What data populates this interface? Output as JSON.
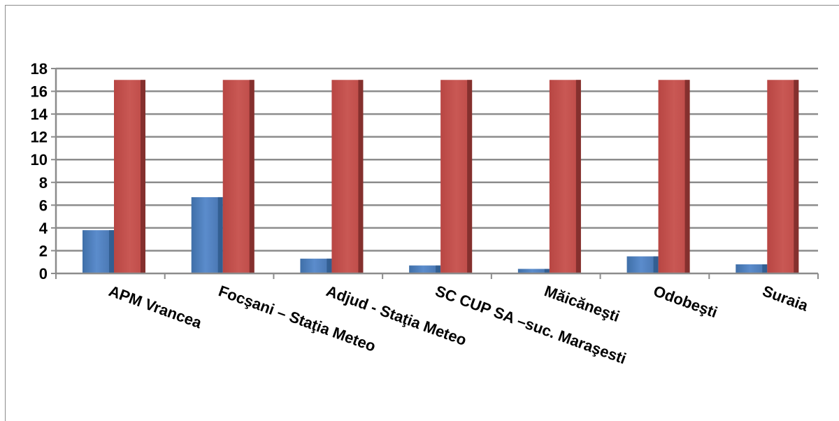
{
  "chart_data": {
    "type": "bar",
    "title": "",
    "xlabel": "",
    "ylabel": "",
    "ylim": [
      0,
      18
    ],
    "yticks": [
      0,
      2,
      4,
      6,
      8,
      10,
      12,
      14,
      16,
      18
    ],
    "grid": true,
    "legend": "none",
    "categories": [
      "APM Vrancea",
      "Focşani – Staţia Meteo",
      "Adjud - Staţia Meteo",
      "SC  CUP SA –suc. Maraşesti",
      "Măicăneşti",
      "Odobeşti",
      "Suraia"
    ],
    "series": [
      {
        "color": "#4F81BD",
        "values": [
          3.8,
          6.7,
          1.3,
          0.7,
          0.4,
          1.5,
          0.8
        ]
      },
      {
        "color": "#C0504D",
        "values": [
          17,
          17,
          17,
          17,
          17,
          17,
          17
        ]
      }
    ]
  }
}
